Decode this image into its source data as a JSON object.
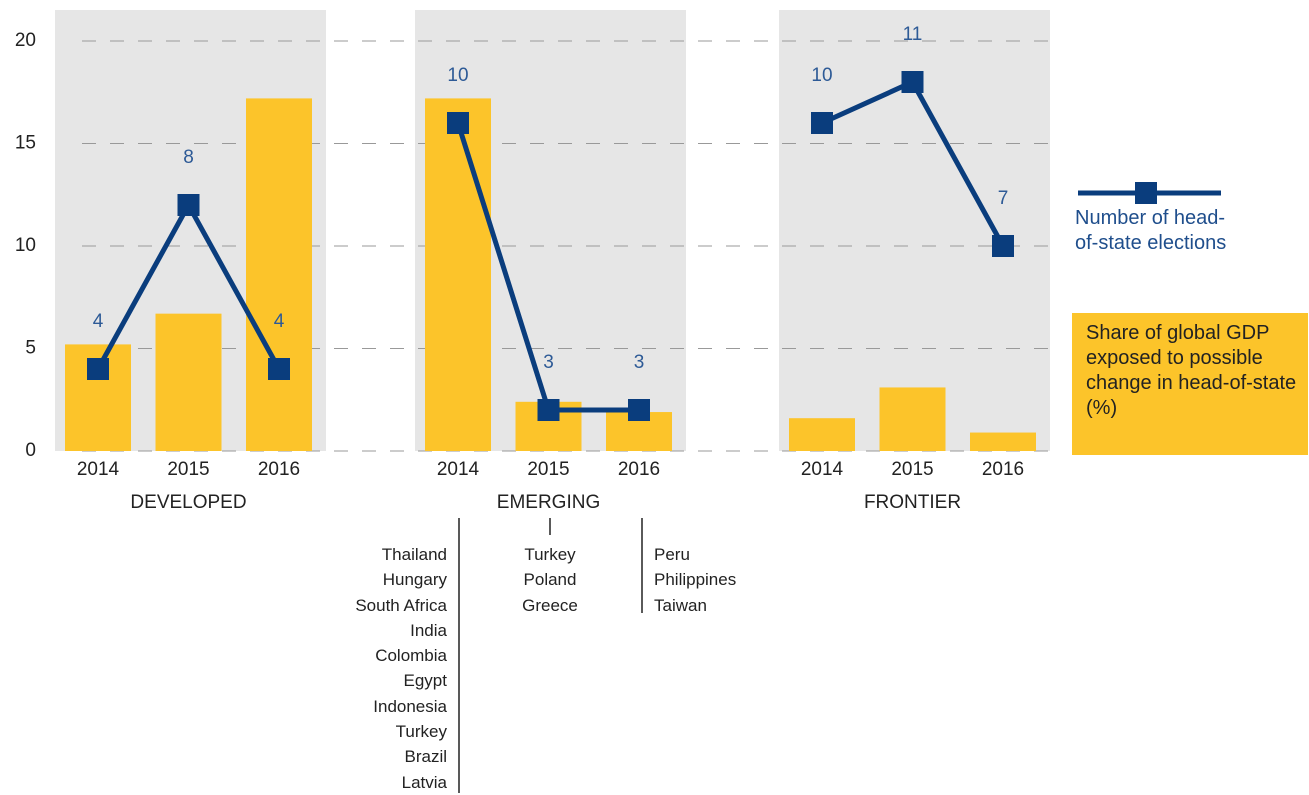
{
  "chart_data": {
    "type": "bar",
    "groups": [
      "DEVELOPED",
      "EMERGING",
      "FRONTIER"
    ],
    "categories": [
      "2014",
      "2015",
      "2016",
      "2014",
      "2015",
      "2016",
      "2014",
      "2015",
      "2016"
    ],
    "series": [
      {
        "name": "Share of global GDP exposed to possible change in head-of-state (%)",
        "type": "bar",
        "color": "#fcc42a",
        "values": [
          5.2,
          6.7,
          17.2,
          17.2,
          2.4,
          1.9,
          1.6,
          3.1,
          0.9
        ]
      },
      {
        "name": "Number of head-of-state elections",
        "type": "line",
        "axis": "y2",
        "color": "#0a3d7d",
        "values": [
          4,
          8,
          4,
          10,
          3,
          3,
          10,
          11,
          7
        ]
      }
    ],
    "ylim": [
      0,
      20
    ],
    "yticks": [
      0,
      5,
      10,
      15,
      20
    ],
    "y2lim": [
      2,
      12
    ],
    "grid": true,
    "notes": [
      [
        "Thailand",
        "Hungary",
        "South Africa",
        "India",
        "Colombia",
        "Egypt",
        "Indonesia",
        "Turkey",
        "Brazil",
        "Latvia"
      ],
      [
        "Turkey",
        "Poland",
        "Greece"
      ],
      [
        "Peru",
        "Philippines",
        "Taiwan"
      ]
    ]
  }
}
